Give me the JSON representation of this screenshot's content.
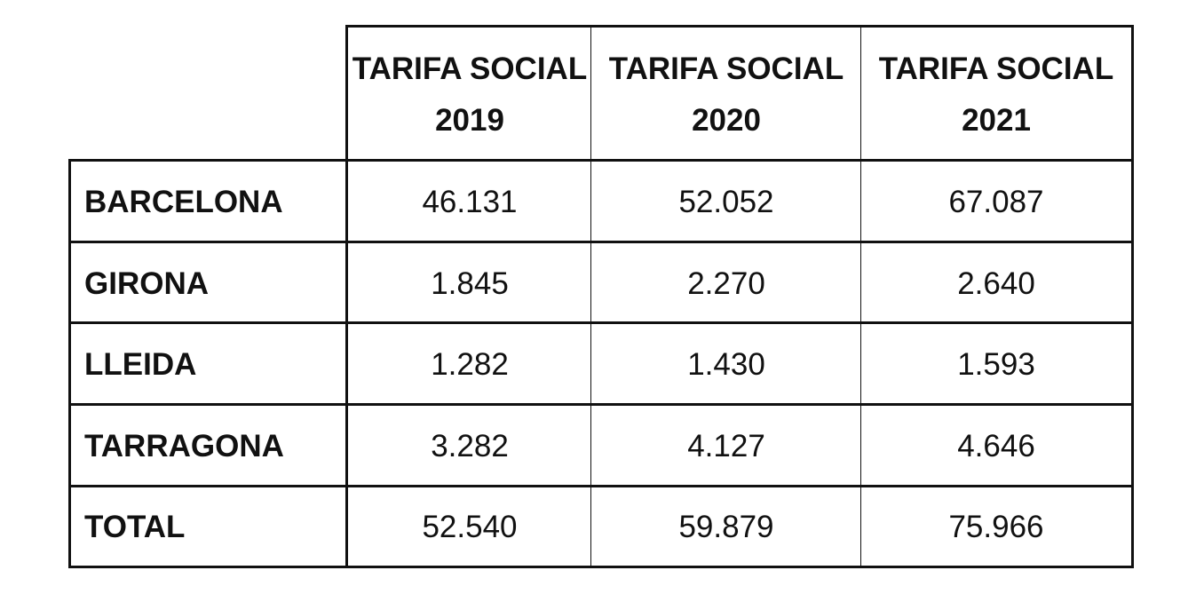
{
  "table": {
    "header": [
      "TARIFA SOCIAL 2019",
      "TARIFA SOCIAL 2020",
      "TARIFA SOCIAL 2021"
    ],
    "rows": [
      [
        "BARCELONA",
        "46.131",
        "52.052",
        "67.087"
      ],
      [
        "GIRONA",
        "1.845",
        "2.270",
        "2.640"
      ],
      [
        "LLEIDA",
        "1.282",
        "1.430",
        "1.593"
      ],
      [
        "TARRAGONA",
        "3.282",
        "4.127",
        "4.646"
      ],
      [
        "TOTAL",
        "52.540",
        "59.879",
        "75.966"
      ]
    ]
  }
}
